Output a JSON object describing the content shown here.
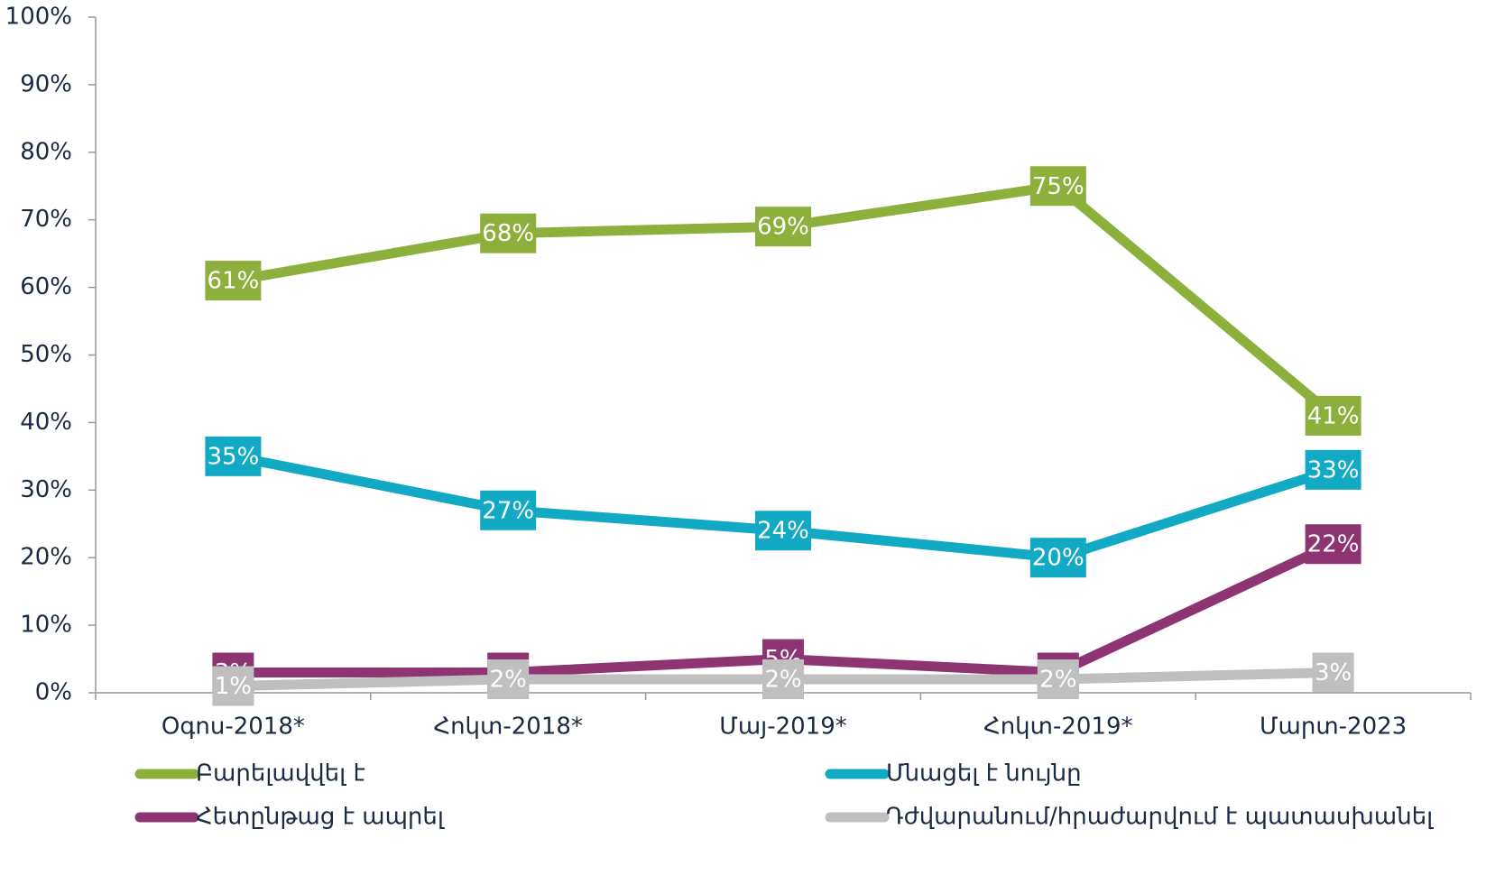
{
  "chart_data": {
    "type": "line",
    "categories": [
      "Օգոս-2018*",
      "Հոկտ-2018*",
      "Մայ-2019*",
      "Հոկտ-2019*",
      "Մարտ-2023"
    ],
    "series": [
      {
        "name": "Բարելավվել է",
        "color": "#8db03c",
        "values": [
          61,
          68,
          69,
          75,
          41
        ],
        "value_labels": [
          "61%",
          "68%",
          "69%",
          "75%",
          "41%"
        ]
      },
      {
        "name": "Մնացել է նույնը",
        "color": "#12a9c4",
        "values": [
          35,
          27,
          24,
          20,
          33
        ],
        "value_labels": [
          "35%",
          "27%",
          "24%",
          "20%",
          "33%"
        ]
      },
      {
        "name": "Հետընթաց է ապրել",
        "color": "#8e3472",
        "values": [
          3,
          3,
          5,
          3,
          22
        ],
        "value_labels": [
          "3%",
          "3%",
          "5%",
          "3%",
          "22%"
        ]
      },
      {
        "name": "Դժվարանում/հրաժարվում է պատասխանել",
        "color": "#bfbfbf",
        "values": [
          1,
          2,
          2,
          2,
          3
        ],
        "value_labels": [
          "1%",
          "2%",
          "2%",
          "2%",
          "3%"
        ]
      }
    ],
    "ylim": [
      0,
      100
    ],
    "yticks": [
      {
        "value": 0,
        "label": "0%"
      },
      {
        "value": 10,
        "label": "10%"
      },
      {
        "value": 20,
        "label": "20%"
      },
      {
        "value": 30,
        "label": "30%"
      },
      {
        "value": 40,
        "label": "40%"
      },
      {
        "value": 50,
        "label": "50%"
      },
      {
        "value": 60,
        "label": "60%"
      },
      {
        "value": 70,
        "label": "70%"
      },
      {
        "value": 80,
        "label": "80%"
      },
      {
        "value": 90,
        "label": "90%"
      },
      {
        "value": 100,
        "label": "100%"
      }
    ],
    "grid": false
  }
}
